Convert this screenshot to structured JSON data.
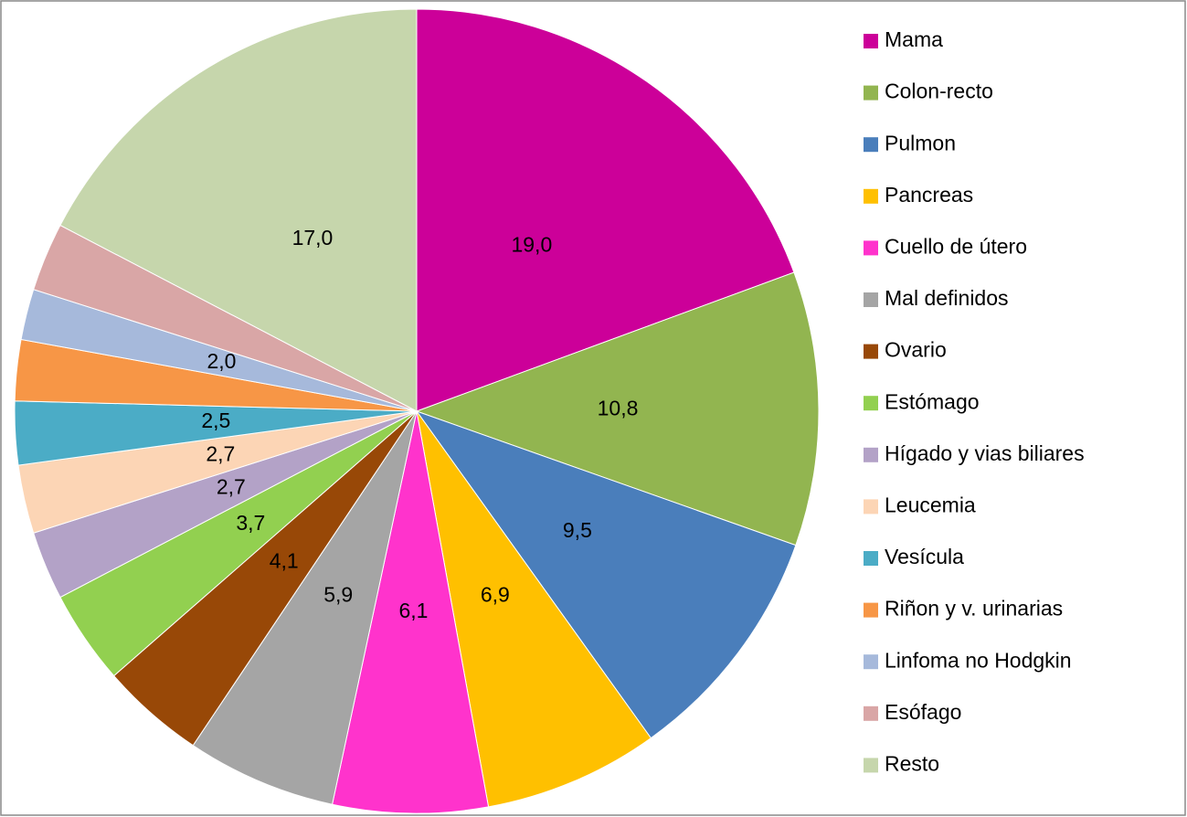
{
  "chart_data": {
    "type": "pie",
    "categories": [
      "Mama",
      "Colon-recto",
      "Pulmon",
      "Pancreas",
      "Cuello de útero",
      "Mal definidos",
      "Ovario",
      "Estómago",
      "Hígado y vias biliares",
      "Leucemia",
      "Vesícula",
      "Riñon y v. urinarias",
      "Linfoma no Hodgkin",
      "Esófago",
      "Resto"
    ],
    "values": [
      19.0,
      10.8,
      9.5,
      6.9,
      6.1,
      5.9,
      4.1,
      3.7,
      2.7,
      2.7,
      2.5,
      2.4,
      2.0,
      2.7,
      17.0
    ],
    "value_labels": [
      "19,0",
      "10,8",
      "9,5",
      "6,9",
      "6,1",
      "5,9",
      "4,1",
      "3,7",
      "2,7",
      "2,7",
      "2,5",
      null,
      "2,0",
      null,
      "17,0"
    ],
    "colors": [
      "#cc0099",
      "#92b550",
      "#4a7ebb",
      "#ffc000",
      "#ff33cc",
      "#a5a5a5",
      "#984807",
      "#92d050",
      "#b3a2c7",
      "#fcd5b5",
      "#4bacc6",
      "#f79646",
      "#a6b9db",
      "#d9a6a6",
      "#c6d6ac"
    ],
    "legend": "right"
  }
}
